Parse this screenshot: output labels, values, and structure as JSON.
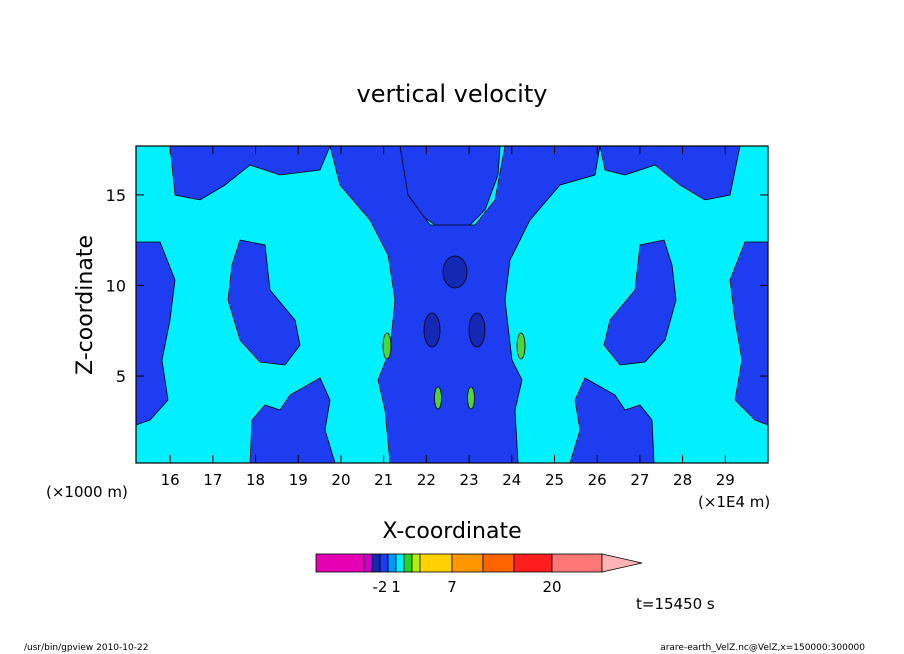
{
  "footer": {
    "left": "/usr/bin/gpview   2010-10-22",
    "right": "arare-earth_VelZ.nc@VelZ,x=150000:300000"
  },
  "time_label": "t=15450 s",
  "chart_data": {
    "type": "heatmap",
    "title": "vertical velocity",
    "xlabel": "X-coordinate",
    "ylabel": "Z-coordinate",
    "x_axis_unit_left": "(×1000 m)",
    "x_axis_unit_right": "(×1E4 m)",
    "x_ticks": [
      16,
      17,
      18,
      19,
      20,
      21,
      22,
      23,
      24,
      25,
      26,
      27,
      28,
      29
    ],
    "y_ticks": [
      5,
      10,
      15
    ],
    "xlim": [
      15.2,
      30
    ],
    "ylim": [
      0.2,
      17.7
    ],
    "colors": {
      "background_level": "#00f0ff",
      "negative_level": "#1e3cf0",
      "strong_negative_level": "#1428b4",
      "positive_level": "#4ed53a"
    },
    "colorbar": {
      "colors": [
        "#e600b4",
        "#c800c8",
        "#1428b4",
        "#1e3cf0",
        "#0096ff",
        "#00f0ff",
        "#28d228",
        "#b4f000",
        "#ffd200",
        "#ff9600",
        "#ff6400",
        "#ff1e1e",
        "#ff7878",
        "#ffb4b4"
      ],
      "tick_labels": [
        "-2",
        "1",
        "7",
        "20"
      ]
    }
  }
}
